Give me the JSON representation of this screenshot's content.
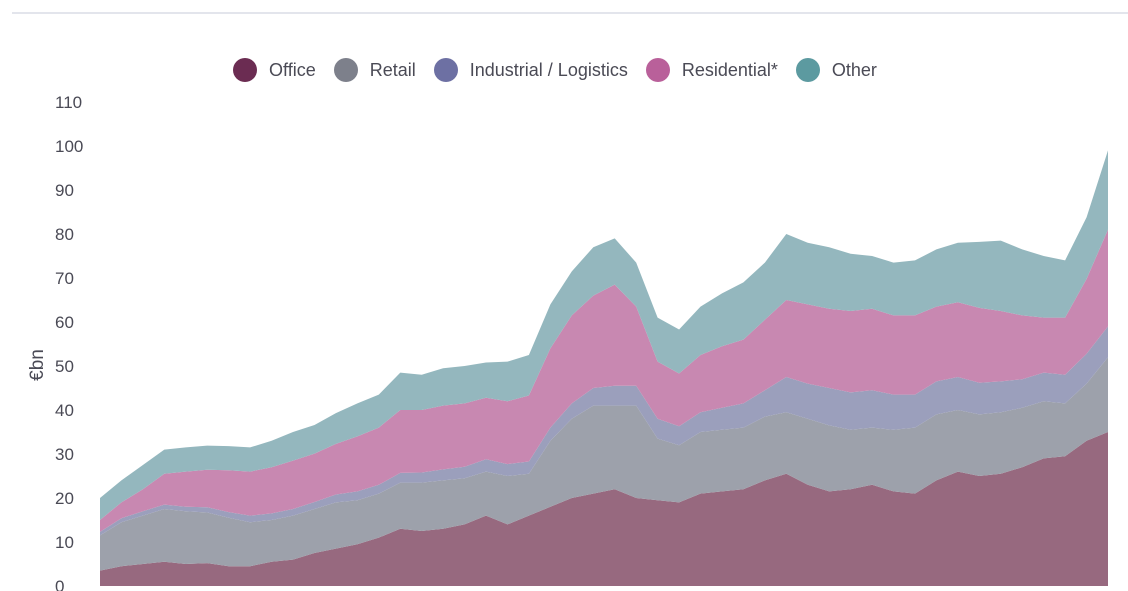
{
  "chart_data": {
    "type": "area",
    "stacked": true,
    "title": "",
    "xlabel": "",
    "ylabel": "€bn",
    "ylim": [
      0,
      110
    ],
    "yticks": [
      "0",
      "10",
      "20",
      "30",
      "40",
      "50",
      "60",
      "70",
      "80",
      "90",
      "100",
      "110"
    ],
    "legend": [
      {
        "name": "Office",
        "swatch": "#6b2c52"
      },
      {
        "name": "Retail",
        "swatch": "#7d808b"
      },
      {
        "name": "Industrial / Logistics",
        "swatch": "#6d70a3"
      },
      {
        "name": "Residential*",
        "swatch": "#b9609a"
      },
      {
        "name": "Other",
        "swatch": "#5c9aa0"
      }
    ],
    "series": [
      {
        "name": "Office",
        "color": "#97697f",
        "values": [
          3.5,
          4.5,
          5,
          5.5,
          5,
          5.2,
          4.5,
          4.5,
          5.5,
          6,
          7.5,
          8.5,
          9.5,
          11,
          13,
          12.5,
          13,
          14,
          16,
          14,
          16,
          18,
          20,
          21,
          22,
          20,
          19.5,
          19,
          21,
          21.5,
          22,
          24,
          25.5,
          23,
          21.5,
          22,
          23,
          21.5,
          21,
          24,
          26,
          25,
          25.5,
          27,
          29,
          29.5,
          33,
          35
        ]
      },
      {
        "name": "Retail",
        "color": "#9da1ab",
        "values": [
          8,
          10,
          11,
          12,
          12,
          11.5,
          11,
          10,
          9.5,
          10,
          10,
          10.5,
          10,
          10,
          10.5,
          11,
          11,
          10.5,
          10,
          11,
          9.5,
          15,
          18,
          20,
          19,
          21,
          14,
          13,
          14,
          14,
          14,
          14.5,
          14,
          15,
          15,
          13.5,
          13,
          14,
          15,
          15,
          14,
          14,
          14,
          13.5,
          13,
          12,
          13,
          17
        ]
      },
      {
        "name": "Industrial / Logistics",
        "color": "#9b9fbc",
        "values": [
          0.8,
          0.9,
          1,
          1,
          1,
          1.2,
          1.3,
          1.5,
          1.5,
          1.5,
          1.6,
          1.8,
          2,
          2,
          2.2,
          2.3,
          2.5,
          2.6,
          2.8,
          2.7,
          2.8,
          3,
          3.5,
          4,
          4.5,
          4.5,
          4.5,
          4.3,
          4.5,
          5,
          5.5,
          6,
          8,
          8,
          8.5,
          8.5,
          8.5,
          8,
          7.5,
          7.5,
          7.5,
          7.2,
          7,
          6.5,
          6.5,
          6.5,
          6.8,
          7
        ]
      },
      {
        "name": "Residential*",
        "color": "#c888b1",
        "values": [
          2.7,
          3.6,
          5,
          7,
          8,
          8.5,
          9.5,
          10,
          10.5,
          11,
          11,
          11.5,
          12.5,
          13,
          14.3,
          14.2,
          14.5,
          14.4,
          14,
          14.3,
          15,
          18,
          20,
          21,
          23,
          18,
          13,
          12,
          13,
          14,
          14.5,
          16,
          17.5,
          18,
          18,
          18.5,
          18.5,
          18,
          18,
          17,
          17,
          17,
          16,
          14.5,
          12.5,
          13,
          17,
          22
        ]
      },
      {
        "name": "Other",
        "color": "#94b7be",
        "values": [
          5,
          5,
          5.5,
          5.5,
          5.5,
          5.5,
          5.5,
          5.5,
          6,
          6.5,
          6.5,
          7,
          7.5,
          7.5,
          8.5,
          8,
          8.5,
          8.5,
          8,
          9,
          9.2,
          10,
          10,
          11,
          10.5,
          10,
          10,
          10,
          11,
          12,
          13,
          13,
          15,
          14,
          14,
          13,
          12,
          12,
          12.5,
          13,
          13.5,
          15,
          16,
          15,
          14,
          13,
          14,
          18
        ]
      }
    ]
  }
}
